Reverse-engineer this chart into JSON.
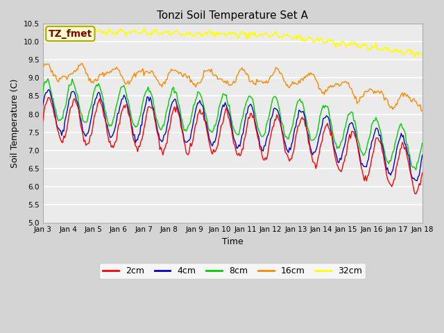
{
  "title": "Tonzi Soil Temperature Set A",
  "xlabel": "Time",
  "ylabel": "Soil Temperature (C)",
  "ylim": [
    5.0,
    10.5
  ],
  "yticks": [
    5.0,
    5.5,
    6.0,
    6.5,
    7.0,
    7.5,
    8.0,
    8.5,
    9.0,
    9.5,
    10.0,
    10.5
  ],
  "xtick_labels": [
    "Jan 3",
    "Jan 4",
    "Jan 5",
    "Jan 6",
    "Jan 7",
    "Jan 8",
    "Jan 9",
    "Jan 10",
    "Jan 11",
    "Jan 12",
    "Jan 13",
    "Jan 14",
    "Jan 15",
    "Jan 16",
    "Jan 17",
    "Jan 18"
  ],
  "n_points": 361,
  "colors": {
    "2cm": "#ff0000",
    "4cm": "#0000cc",
    "8cm": "#00cc00",
    "16cm": "#ff8800",
    "32cm": "#ffff00"
  },
  "legend_labels": [
    "2cm",
    "4cm",
    "8cm",
    "16cm",
    "32cm"
  ],
  "annotation_text": "TZ_fmet",
  "annotation_box_color": "#ffffcc",
  "annotation_text_color": "#880000",
  "plot_bg_color": "#ebebeb",
  "fig_bg_color": "#d4d4d4"
}
